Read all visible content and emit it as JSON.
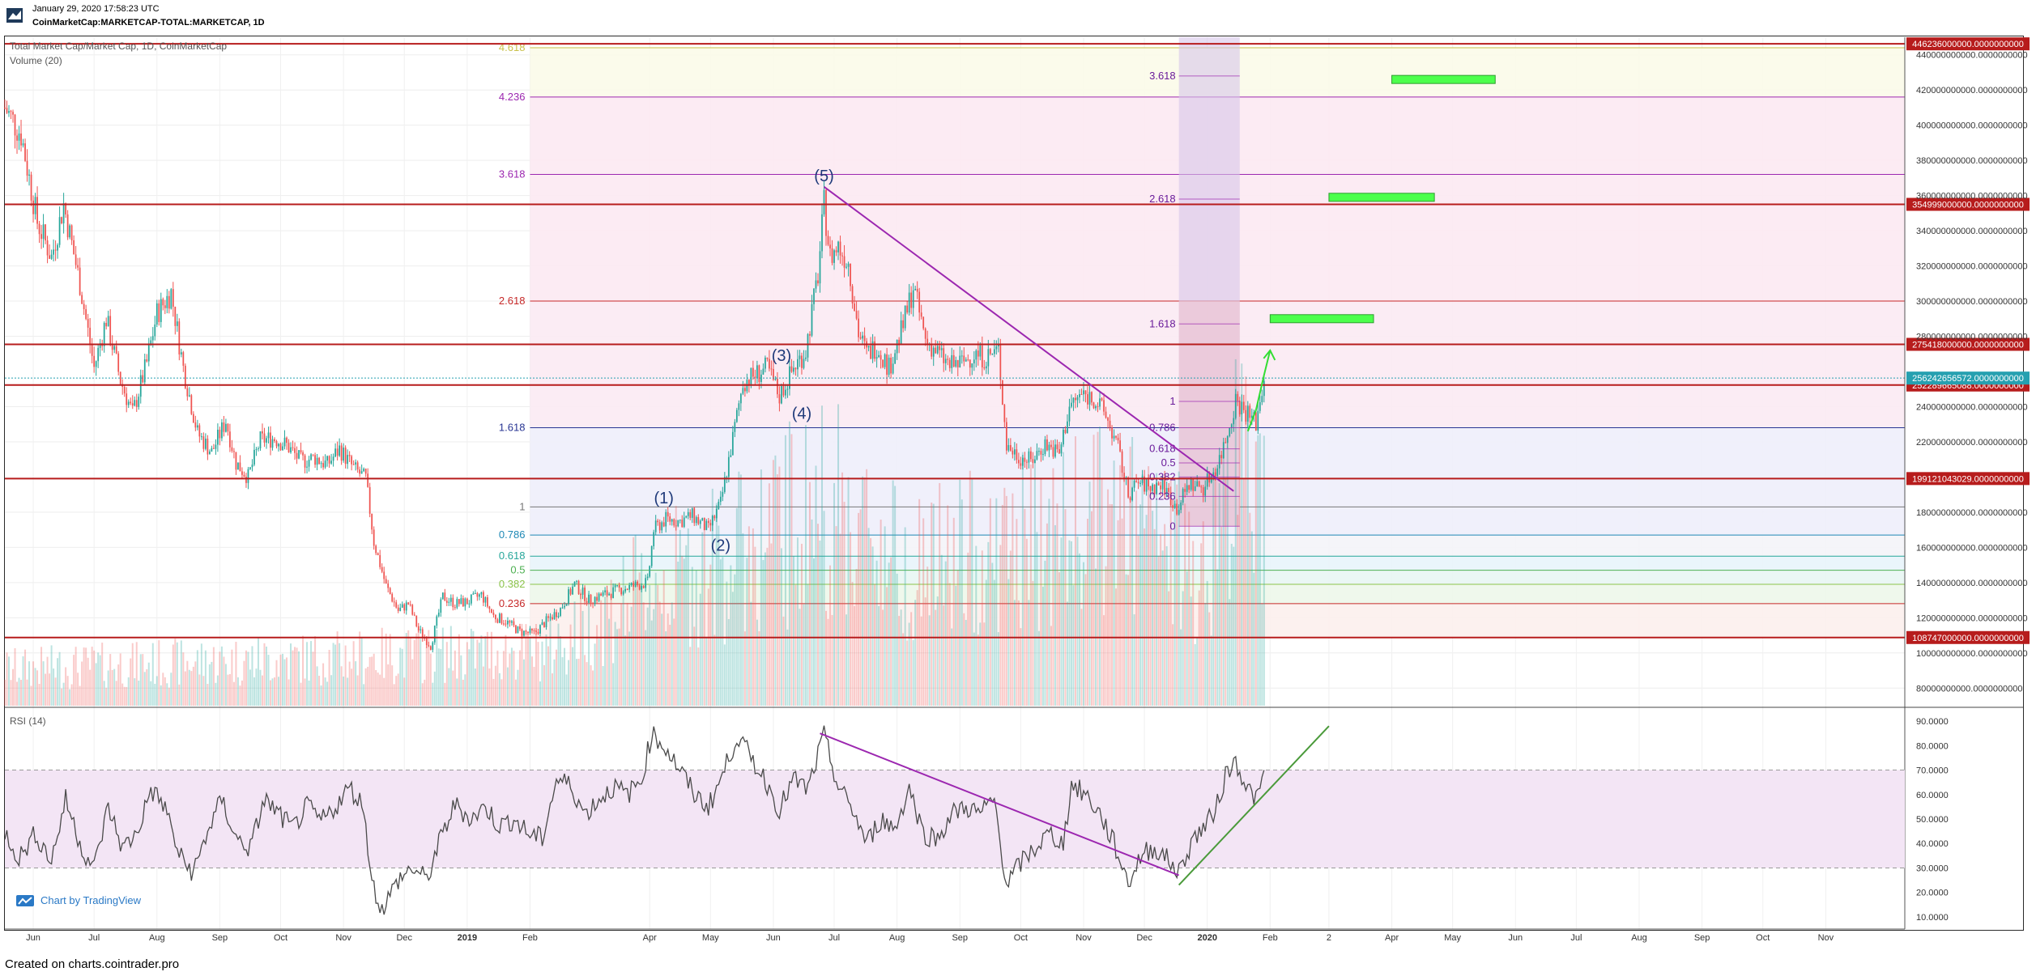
{
  "header": {
    "date": "January 29, 2020 17:58:23 UTC",
    "symbol": "CoinMarketCap:MARKETCAP-TOTAL:MARKETCAP, 1D"
  },
  "main_legend": "Total Market Cap/Market Cap, 1D, CoinMarketCap",
  "volume_legend": "Volume (20)",
  "rsi_legend": "RSI (14)",
  "branding": {
    "label": "Chart by TradingView",
    "icon": "tradingview-icon"
  },
  "footer": "Created on charts.cointrader.pro",
  "colors": {
    "up": "#26a69a",
    "down": "#ef5350",
    "level": "#b71c1c",
    "trend": "#9c27b0",
    "target": "#4cff4c",
    "rsi_line": "#4a4a4a",
    "rsi_band": "#f3e5f5",
    "rsi_trend_up": "#4a9a3a",
    "current_price": "#26a0b0"
  },
  "chart_data": [
    {
      "type": "line",
      "title": "Total Market Cap/Market Cap, 1D, CoinMarketCap",
      "note": "candlestick price chart with volume histogram",
      "x_tick_labels": [
        "Jun",
        "Jul",
        "Aug",
        "Sep",
        "Oct",
        "Nov",
        "Dec",
        "2019",
        "Feb",
        "Apr",
        "May",
        "Jun",
        "Jul",
        "Aug",
        "Sep",
        "Oct",
        "Nov",
        "Dec",
        "2020",
        "Feb",
        "2",
        "Apr",
        "May",
        "Jun",
        "Jul",
        "Aug",
        "Sep",
        "Oct",
        "Nov"
      ],
      "y_tick_labels": [
        "440000000000.0000000000",
        "420000000000.0000000000",
        "400000000000.0000000000",
        "380000000000.0000000000",
        "360000000000.0000000000",
        "340000000000.0000000000",
        "320000000000.0000000000",
        "300000000000.0000000000",
        "280000000000.0000000000",
        "240000000000.0000000000",
        "220000000000.0000000000",
        "180000000000.0000000000",
        "160000000000.0000000000",
        "140000000000.0000000000",
        "120000000000.0000000000",
        "100000000000.0000000000",
        "80000000000.0000000000"
      ],
      "ylim": [
        70000000000,
        450000000000
      ],
      "x_range": [
        "2018-05-18",
        "2020-12-10"
      ],
      "price_series": [
        [
          "2018-05-18",
          410
        ],
        [
          "2018-05-26",
          395
        ],
        [
          "2018-06-03",
          345
        ],
        [
          "2018-06-10",
          325
        ],
        [
          "2018-06-16",
          355
        ],
        [
          "2018-06-24",
          310
        ],
        [
          "2018-07-01",
          262
        ],
        [
          "2018-07-07",
          290
        ],
        [
          "2018-07-14",
          255
        ],
        [
          "2018-07-20",
          236
        ],
        [
          "2018-07-27",
          265
        ],
        [
          "2018-08-01",
          293
        ],
        [
          "2018-08-08",
          305
        ],
        [
          "2018-08-14",
          262
        ],
        [
          "2018-08-21",
          225
        ],
        [
          "2018-08-28",
          214
        ],
        [
          "2018-09-04",
          232
        ],
        [
          "2018-09-09",
          208
        ],
        [
          "2018-09-15",
          200
        ],
        [
          "2018-09-21",
          221
        ],
        [
          "2018-09-28",
          222
        ],
        [
          "2018-10-04",
          218
        ],
        [
          "2018-10-11",
          209
        ],
        [
          "2018-10-18",
          211
        ],
        [
          "2018-10-24",
          207
        ],
        [
          "2018-10-30",
          216
        ],
        [
          "2018-11-06",
          205
        ],
        [
          "2018-11-12",
          199
        ],
        [
          "2018-11-16",
          163
        ],
        [
          "2018-11-22",
          138
        ],
        [
          "2018-11-28",
          124
        ],
        [
          "2018-12-03",
          128
        ],
        [
          "2018-12-08",
          113
        ],
        [
          "2018-12-14",
          104
        ],
        [
          "2018-12-20",
          132
        ],
        [
          "2018-12-26",
          128
        ],
        [
          "2019-01-01",
          129
        ],
        [
          "2019-01-08",
          133
        ],
        [
          "2019-01-14",
          121
        ],
        [
          "2019-01-20",
          118
        ],
        [
          "2019-01-27",
          112
        ],
        [
          "2019-02-03",
          111
        ],
        [
          "2019-02-09",
          118
        ],
        [
          "2019-02-16",
          125
        ],
        [
          "2019-02-23",
          139
        ],
        [
          "2019-03-02",
          130
        ],
        [
          "2019-03-09",
          133
        ],
        [
          "2019-03-17",
          136
        ],
        [
          "2019-03-24",
          138
        ],
        [
          "2019-03-31",
          140
        ],
        [
          "2019-04-03",
          170
        ],
        [
          "2019-04-09",
          176
        ],
        [
          "2019-04-16",
          175
        ],
        [
          "2019-04-22",
          178
        ],
        [
          "2019-04-30",
          170
        ],
        [
          "2019-05-06",
          185
        ],
        [
          "2019-05-12",
          222
        ],
        [
          "2019-05-17",
          254
        ],
        [
          "2019-05-23",
          258
        ],
        [
          "2019-05-29",
          262
        ],
        [
          "2019-06-04",
          246
        ],
        [
          "2019-06-11",
          262
        ],
        [
          "2019-06-17",
          272
        ],
        [
          "2019-06-23",
          315
        ],
        [
          "2019-06-26",
          355
        ],
        [
          "2019-06-29",
          325
        ],
        [
          "2019-07-03",
          331
        ],
        [
          "2019-07-08",
          322
        ],
        [
          "2019-07-13",
          282
        ],
        [
          "2019-07-17",
          270
        ],
        [
          "2019-07-22",
          275
        ],
        [
          "2019-07-28",
          262
        ],
        [
          "2019-08-04",
          286
        ],
        [
          "2019-08-09",
          308
        ],
        [
          "2019-08-15",
          278
        ],
        [
          "2019-08-20",
          272
        ],
        [
          "2019-08-27",
          263
        ],
        [
          "2019-09-02",
          265
        ],
        [
          "2019-09-08",
          270
        ],
        [
          "2019-09-14",
          268
        ],
        [
          "2019-09-20",
          272
        ],
        [
          "2019-09-24",
          218
        ],
        [
          "2019-09-30",
          212
        ],
        [
          "2019-10-06",
          209
        ],
        [
          "2019-10-13",
          219
        ],
        [
          "2019-10-20",
          213
        ],
        [
          "2019-10-25",
          240
        ],
        [
          "2019-10-31",
          247
        ],
        [
          "2019-11-06",
          245
        ],
        [
          "2019-11-12",
          235
        ],
        [
          "2019-11-18",
          216
        ],
        [
          "2019-11-23",
          190
        ],
        [
          "2019-11-28",
          197
        ],
        [
          "2019-12-04",
          194
        ],
        [
          "2019-12-10",
          196
        ],
        [
          "2019-12-17",
          182
        ],
        [
          "2019-12-23",
          196
        ],
        [
          "2019-12-30",
          194
        ],
        [
          "2020-01-06",
          207
        ],
        [
          "2020-01-10",
          221
        ],
        [
          "2020-01-15",
          244
        ],
        [
          "2020-01-21",
          236
        ],
        [
          "2020-01-25",
          231
        ],
        [
          "2020-01-29",
          256
        ]
      ],
      "volume_profile": [
        [
          "2018-05-18",
          8
        ],
        [
          "2019-02-09",
          12
        ],
        [
          "2019-04-03",
          26
        ],
        [
          "2019-05-12",
          32
        ],
        [
          "2019-06-26",
          44
        ],
        [
          "2019-08-09",
          30
        ],
        [
          "2019-09-24",
          34
        ],
        [
          "2019-11-18",
          40
        ],
        [
          "2019-12-30",
          30
        ],
        [
          "2020-01-15",
          52
        ],
        [
          "2020-01-29",
          46
        ]
      ],
      "horizontal_levels": [
        {
          "value": 446236000000,
          "label": "446236000000.0000000000"
        },
        {
          "value": 354999000000,
          "label": "354999000000.0000000000"
        },
        {
          "value": 275418000000,
          "label": "275418000000.0000000000"
        },
        {
          "value": 252289665088,
          "label": "252289665088.0000000000"
        },
        {
          "value": 199121043029,
          "label": "199121043029.0000000000"
        },
        {
          "value": 108747000000,
          "label": "108747000000.0000000000"
        }
      ],
      "current_price": {
        "value": 256242656572,
        "label": "256242656572.0000000000"
      },
      "fib_extension_left": {
        "from_date": "2019-02-01",
        "to_date": "2020-12-10",
        "levels": [
          {
            "ratio": "4.618",
            "value": 444000000000,
            "color": "#c9c14a"
          },
          {
            "ratio": "4.236",
            "value": 416000000000,
            "color": "#9c27b0"
          },
          {
            "ratio": "3.618",
            "value": 372000000000,
            "color": "#9c27b0"
          },
          {
            "ratio": "2.618",
            "value": 300000000000,
            "color": "#c62828"
          },
          {
            "ratio": "1.618",
            "value": 228000000000,
            "color": "#283593"
          },
          {
            "ratio": "1",
            "value": 183000000000,
            "color": "#777777"
          },
          {
            "ratio": "0.786",
            "value": 167000000000,
            "color": "#1e88b5"
          },
          {
            "ratio": "0.618",
            "value": 155000000000,
            "color": "#26a69a"
          },
          {
            "ratio": "0.5",
            "value": 147000000000,
            "color": "#4caf50"
          },
          {
            "ratio": "0.382",
            "value": 139000000000,
            "color": "#8bc34a"
          },
          {
            "ratio": "0.236",
            "value": 128000000000,
            "color": "#c62828"
          }
        ]
      },
      "fib_extension_right": {
        "from_date": "2019-12-18",
        "to_date": "2020-01-17",
        "levels": [
          {
            "ratio": "3.618",
            "value": 428000000000
          },
          {
            "ratio": "2.618",
            "value": 358000000000
          },
          {
            "ratio": "1.618",
            "value": 287000000000
          },
          {
            "ratio": "1",
            "value": 243000000000
          },
          {
            "ratio": "0.786",
            "value": 228000000000
          },
          {
            "ratio": "0.618",
            "value": 216000000000
          },
          {
            "ratio": "0.5",
            "value": 208000000000
          },
          {
            "ratio": "0.382",
            "value": 200000000000
          },
          {
            "ratio": "0.236",
            "value": 189000000000
          },
          {
            "ratio": "0",
            "value": 172000000000
          }
        ]
      },
      "wave_labels": [
        {
          "label": "(1)",
          "date": "2019-04-08",
          "value": 185000000000
        },
        {
          "label": "(2)",
          "date": "2019-05-06",
          "value": 158000000000
        },
        {
          "label": "(3)",
          "date": "2019-06-05",
          "value": 266000000000
        },
        {
          "label": "(4)",
          "date": "2019-06-15",
          "value": 233000000000
        },
        {
          "label": "(5)",
          "date": "2019-06-26",
          "value": 368000000000
        }
      ],
      "trendline": {
        "from": [
          "2019-06-26",
          365000000000
        ],
        "to": [
          "2020-01-14",
          192000000000
        ]
      },
      "projection": [
        [
          "2020-01-21",
          226000000000
        ],
        [
          "2020-01-25",
          238000000000
        ],
        [
          "2020-01-29",
          258000000000
        ],
        [
          "2020-02-01",
          272000000000
        ]
      ],
      "target_boxes": [
        {
          "from": "2020-02-01",
          "to": "2020-03-23",
          "value": 290000000000
        },
        {
          "from": "2020-03-01",
          "to": "2020-04-22",
          "value": 359000000000
        },
        {
          "from": "2020-04-01",
          "to": "2020-05-22",
          "value": 426000000000
        }
      ],
      "shaded_zone": {
        "from": "2019-12-18",
        "to": "2020-01-17"
      }
    },
    {
      "type": "line",
      "title": "RSI (14)",
      "ylim": [
        5,
        95
      ],
      "y_tick_labels": [
        "90.0000",
        "80.0000",
        "70.0000",
        "60.0000",
        "50.0000",
        "40.0000",
        "30.0000",
        "20.0000",
        "10.0000"
      ],
      "band": [
        30,
        70
      ],
      "series": [
        [
          "2018-05-18",
          45
        ],
        [
          "2018-05-25",
          34
        ],
        [
          "2018-06-02",
          44
        ],
        [
          "2018-06-10",
          33
        ],
        [
          "2018-06-17",
          58
        ],
        [
          "2018-06-25",
          38
        ],
        [
          "2018-07-01",
          30
        ],
        [
          "2018-07-08",
          55
        ],
        [
          "2018-07-15",
          38
        ],
        [
          "2018-07-22",
          44
        ],
        [
          "2018-07-29",
          62
        ],
        [
          "2018-08-05",
          55
        ],
        [
          "2018-08-12",
          35
        ],
        [
          "2018-08-19",
          28
        ],
        [
          "2018-08-26",
          45
        ],
        [
          "2018-09-02",
          58
        ],
        [
          "2018-09-09",
          42
        ],
        [
          "2018-09-16",
          38
        ],
        [
          "2018-09-23",
          58
        ],
        [
          "2018-09-30",
          52
        ],
        [
          "2018-10-07",
          46
        ],
        [
          "2018-10-14",
          55
        ],
        [
          "2018-10-21",
          49
        ],
        [
          "2018-10-28",
          55
        ],
        [
          "2018-11-04",
          63
        ],
        [
          "2018-11-11",
          55
        ],
        [
          "2018-11-15",
          24
        ],
        [
          "2018-11-20",
          13
        ],
        [
          "2018-11-28",
          25
        ],
        [
          "2018-12-05",
          30
        ],
        [
          "2018-12-12",
          25
        ],
        [
          "2018-12-19",
          42
        ],
        [
          "2018-12-26",
          56
        ],
        [
          "2019-01-03",
          50
        ],
        [
          "2019-01-10",
          55
        ],
        [
          "2019-01-17",
          47
        ],
        [
          "2019-01-24",
          50
        ],
        [
          "2019-01-31",
          44
        ],
        [
          "2019-02-07",
          42
        ],
        [
          "2019-02-14",
          66
        ],
        [
          "2019-02-21",
          64
        ],
        [
          "2019-02-28",
          52
        ],
        [
          "2019-03-07",
          58
        ],
        [
          "2019-03-14",
          63
        ],
        [
          "2019-03-21",
          60
        ],
        [
          "2019-03-28",
          66
        ],
        [
          "2019-04-02",
          85
        ],
        [
          "2019-04-09",
          79
        ],
        [
          "2019-04-16",
          70
        ],
        [
          "2019-04-23",
          60
        ],
        [
          "2019-04-30",
          55
        ],
        [
          "2019-05-07",
          68
        ],
        [
          "2019-05-14",
          84
        ],
        [
          "2019-05-21",
          75
        ],
        [
          "2019-05-28",
          66
        ],
        [
          "2019-06-04",
          54
        ],
        [
          "2019-06-11",
          66
        ],
        [
          "2019-06-18",
          62
        ],
        [
          "2019-06-26",
          84
        ],
        [
          "2019-07-03",
          63
        ],
        [
          "2019-07-10",
          54
        ],
        [
          "2019-07-17",
          40
        ],
        [
          "2019-07-24",
          50
        ],
        [
          "2019-07-31",
          46
        ],
        [
          "2019-08-07",
          63
        ],
        [
          "2019-08-14",
          44
        ],
        [
          "2019-08-21",
          42
        ],
        [
          "2019-08-28",
          52
        ],
        [
          "2019-09-04",
          55
        ],
        [
          "2019-09-11",
          52
        ],
        [
          "2019-09-18",
          58
        ],
        [
          "2019-09-24",
          23
        ],
        [
          "2019-10-01",
          32
        ],
        [
          "2019-10-08",
          38
        ],
        [
          "2019-10-15",
          44
        ],
        [
          "2019-10-22",
          40
        ],
        [
          "2019-10-26",
          64
        ],
        [
          "2019-11-02",
          60
        ],
        [
          "2019-11-09",
          52
        ],
        [
          "2019-11-16",
          40
        ],
        [
          "2019-11-23",
          24
        ],
        [
          "2019-11-30",
          36
        ],
        [
          "2019-12-07",
          38
        ],
        [
          "2019-12-14",
          32
        ],
        [
          "2019-12-18",
          28
        ],
        [
          "2019-12-25",
          42
        ],
        [
          "2020-01-01",
          48
        ],
        [
          "2020-01-06",
          56
        ],
        [
          "2020-01-10",
          68
        ],
        [
          "2020-01-15",
          74
        ],
        [
          "2020-01-21",
          62
        ],
        [
          "2020-01-26",
          58
        ],
        [
          "2020-01-29",
          70
        ]
      ],
      "trendlines": [
        {
          "from": [
            "2019-06-24",
            85
          ],
          "to": [
            "2019-12-18",
            27
          ],
          "color": "#9c27b0"
        },
        {
          "from": [
            "2019-12-18",
            23
          ],
          "to": [
            "2020-03-01",
            88
          ],
          "color": "#4a9a3a"
        }
      ]
    }
  ]
}
